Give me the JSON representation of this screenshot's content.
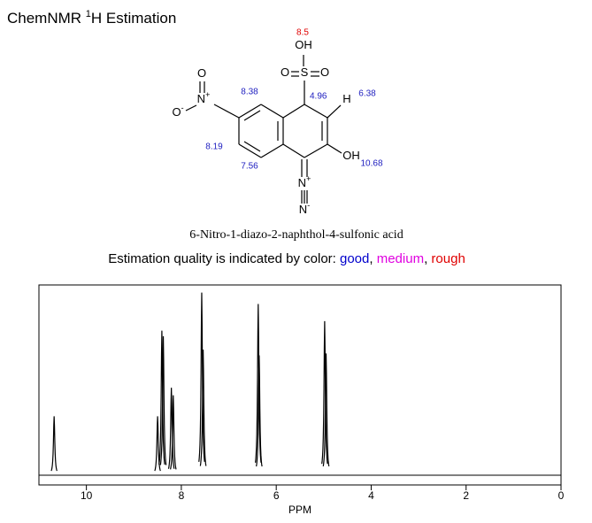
{
  "header": {
    "title": "ChemNMR ",
    "title_sup": "1",
    "title_rest": "H Estimation"
  },
  "molecule": {
    "name": "6-Nitro-1-diazo-2-naphthol-4-sulfonic acid",
    "atoms": [
      {
        "label": "OH"
      },
      {
        "label": "S"
      },
      {
        "label": "O"
      },
      {
        "label": "O"
      },
      {
        "label": "H"
      },
      {
        "label": "OH"
      },
      {
        "label": "N",
        "charge": "+"
      },
      {
        "label": "N",
        "charge": "-"
      },
      {
        "label": "O"
      },
      {
        "label": "O",
        "charge": "-"
      },
      {
        "label": "N",
        "charge": "+"
      }
    ],
    "shifts": [
      {
        "label": "8.5",
        "color": "#e00000"
      },
      {
        "label": "4.96",
        "color": "#2020c0"
      },
      {
        "label": "6.38",
        "color": "#2020c0"
      },
      {
        "label": "8.38",
        "color": "#2020c0"
      },
      {
        "label": "8.19",
        "color": "#2020c0"
      },
      {
        "label": "7.56",
        "color": "#2020c0"
      },
      {
        "label": "10.68",
        "color": "#2020c0"
      }
    ]
  },
  "legend": {
    "prefix": "Estimation quality is indicated by color: ",
    "separator": ", ",
    "items": [
      {
        "label": "good",
        "color": "#0000cc"
      },
      {
        "label": "medium",
        "color": "#e000e0"
      },
      {
        "label": "rough",
        "color": "#e00000"
      }
    ]
  },
  "chart_data": {
    "type": "spectrum",
    "x_label": "PPM",
    "xlim": [
      11,
      0
    ],
    "ylim": [
      0,
      1
    ],
    "xticks": [
      10,
      8,
      6,
      4,
      2,
      0
    ],
    "color": "#000000",
    "x": [
      10.68,
      8.5,
      8.41,
      8.38,
      8.21,
      8.17,
      7.57,
      7.54,
      6.38,
      6.36,
      4.98,
      4.95
    ],
    "values": [
      0.31,
      0.31,
      0.76,
      0.73,
      0.46,
      0.42,
      0.96,
      0.66,
      0.9,
      0.63,
      0.81,
      0.64
    ]
  }
}
